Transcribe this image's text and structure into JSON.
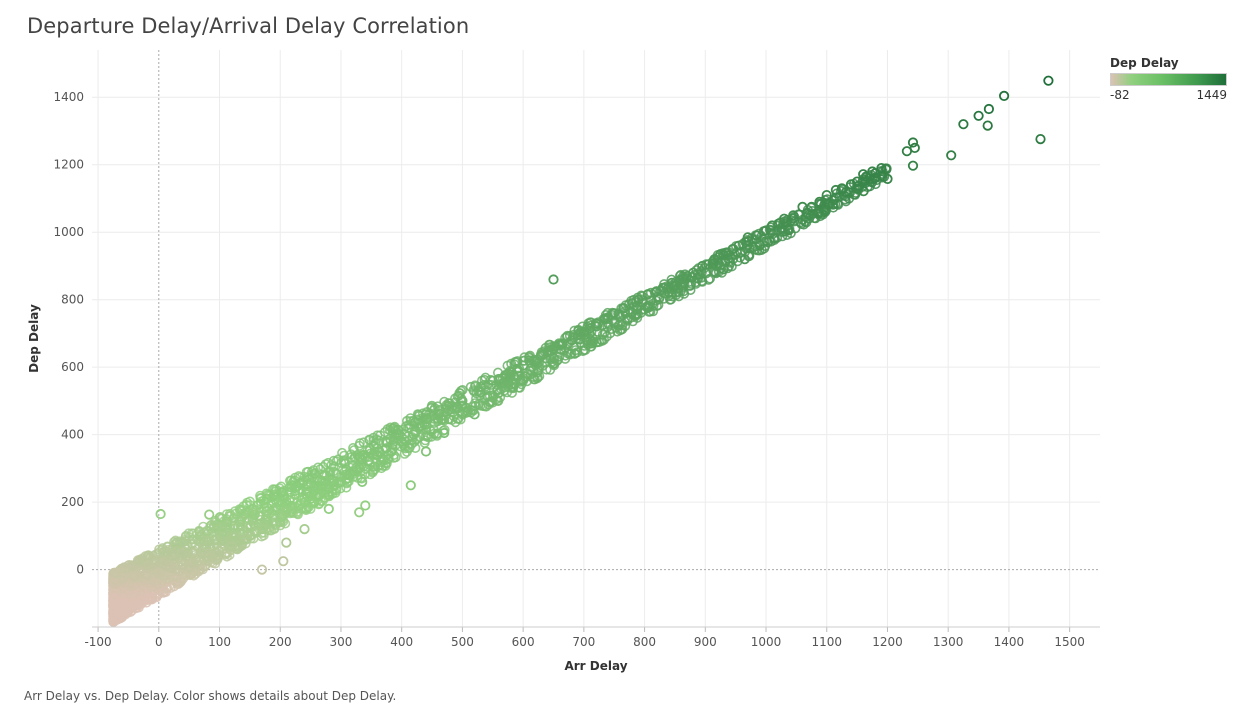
{
  "page": {
    "title": "Departure Delay/Arrival Delay Correlation",
    "caption": "Arr Delay vs. Dep Delay.  Color shows details about Dep Delay."
  },
  "legend": {
    "title": "Dep Delay",
    "min_label": "-82",
    "max_label": "1449"
  },
  "chart_data": {
    "type": "scatter",
    "title": "Departure Delay/Arrival Delay Correlation",
    "xlabel": "Arr Delay",
    "ylabel": "Dep Delay",
    "xlim": [
      -110,
      1550
    ],
    "ylim": [
      -170,
      1540
    ],
    "xticks": [
      -100,
      0,
      100,
      200,
      300,
      400,
      500,
      600,
      700,
      800,
      900,
      1000,
      1100,
      1200,
      1300,
      1400,
      1500
    ],
    "yticks": [
      0,
      200,
      400,
      600,
      800,
      1000,
      1200,
      1400
    ],
    "color_field": "Dep Delay",
    "color_range": [
      -82,
      1449
    ],
    "colors": {
      "low": "#dcc2b4",
      "mid": "#8fd07e",
      "high": "#1f6f3a"
    },
    "grid": true,
    "marker": "hollow-circle",
    "legend_position": "top-right",
    "density_band": {
      "description_free": true,
      "x_range": [
        -75,
        1200
      ],
      "slope": 0.98,
      "intercept": 8
    },
    "points": [
      [
        1465,
        1449
      ],
      [
        1392,
        1404
      ],
      [
        1367,
        1365
      ],
      [
        1350,
        1345
      ],
      [
        1325,
        1320
      ],
      [
        1365,
        1316
      ],
      [
        1452,
        1276
      ],
      [
        1305,
        1228
      ],
      [
        1242,
        1266
      ],
      [
        1245,
        1250
      ],
      [
        1232,
        1240
      ],
      [
        1242,
        1197
      ],
      [
        1200,
        1158
      ],
      [
        1190,
        1190
      ],
      [
        1180,
        1175
      ],
      [
        1175,
        1180
      ],
      [
        1165,
        1165
      ],
      [
        1160,
        1172
      ],
      [
        1150,
        1150
      ],
      [
        1140,
        1142
      ],
      [
        1125,
        1130
      ],
      [
        1115,
        1125
      ],
      [
        1100,
        1110
      ],
      [
        1088,
        1090
      ],
      [
        1075,
        1075
      ],
      [
        1060,
        1075
      ],
      [
        1045,
        1050
      ],
      [
        1030,
        1040
      ],
      [
        1020,
        1025
      ],
      [
        1010,
        1020
      ],
      [
        1000,
        1005
      ],
      [
        985,
        990
      ],
      [
        970,
        985
      ],
      [
        955,
        960
      ],
      [
        945,
        950
      ],
      [
        935,
        940
      ],
      [
        925,
        935
      ],
      [
        915,
        920
      ],
      [
        905,
        905
      ],
      [
        895,
        900
      ],
      [
        880,
        880
      ],
      [
        965,
        920
      ],
      [
        930,
        890
      ],
      [
        870,
        870
      ],
      [
        860,
        860
      ],
      [
        845,
        850
      ],
      [
        830,
        835
      ],
      [
        820,
        825
      ],
      [
        805,
        815
      ],
      [
        790,
        800
      ],
      [
        780,
        790
      ],
      [
        765,
        775
      ],
      [
        750,
        760
      ],
      [
        735,
        745
      ],
      [
        720,
        730
      ],
      [
        710,
        715
      ],
      [
        700,
        705
      ],
      [
        690,
        695
      ],
      [
        705,
        680
      ],
      [
        680,
        680
      ],
      [
        665,
        670
      ],
      [
        650,
        860
      ],
      [
        650,
        655
      ],
      [
        640,
        645
      ],
      [
        630,
        635
      ],
      [
        685,
        640
      ],
      [
        650,
        610
      ],
      [
        620,
        615
      ],
      [
        610,
        620
      ],
      [
        600,
        605
      ],
      [
        590,
        595
      ],
      [
        580,
        585
      ],
      [
        570,
        575
      ],
      [
        560,
        565
      ],
      [
        550,
        560
      ],
      [
        560,
        560
      ],
      [
        530,
        525
      ],
      [
        520,
        460
      ],
      [
        500,
        500
      ],
      [
        470,
        405
      ],
      [
        490,
        480
      ],
      [
        440,
        350
      ],
      [
        415,
        250
      ],
      [
        420,
        400
      ],
      [
        400,
        380
      ],
      [
        385,
        370
      ],
      [
        375,
        360
      ],
      [
        360,
        340
      ],
      [
        345,
        320
      ],
      [
        330,
        300
      ],
      [
        320,
        290
      ],
      [
        335,
        260
      ],
      [
        310,
        270
      ],
      [
        300,
        260
      ],
      [
        290,
        250
      ],
      [
        280,
        240
      ],
      [
        270,
        230
      ],
      [
        260,
        220
      ],
      [
        250,
        210
      ],
      [
        240,
        200
      ],
      [
        230,
        190
      ],
      [
        220,
        180
      ],
      [
        210,
        170
      ],
      [
        200,
        160
      ],
      [
        340,
        190
      ],
      [
        330,
        170
      ],
      [
        170,
        120
      ],
      [
        160,
        110
      ],
      [
        150,
        100
      ],
      [
        140,
        90
      ],
      [
        120,
        70
      ],
      [
        100,
        55
      ],
      [
        80,
        40
      ],
      [
        60,
        30
      ],
      [
        40,
        15
      ],
      [
        20,
        5
      ],
      [
        0,
        -10
      ],
      [
        -20,
        -15
      ],
      [
        -40,
        -20
      ],
      [
        -60,
        -25
      ],
      [
        -70,
        -10
      ],
      [
        3,
        165
      ],
      [
        83,
        163
      ],
      [
        -16,
        -82
      ],
      [
        205,
        25
      ],
      [
        170,
        0
      ],
      [
        280,
        180
      ],
      [
        240,
        120
      ],
      [
        210,
        80
      ]
    ]
  }
}
